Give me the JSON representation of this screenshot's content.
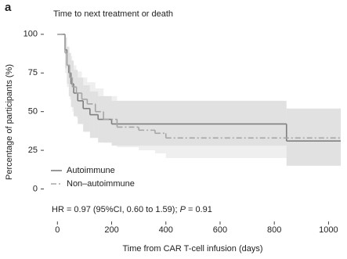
{
  "panel_label": "a",
  "chart_data": {
    "type": "step",
    "title": "Time to next treatment or death",
    "x_label": "Time from CAR T-cell infusion (days)",
    "y_label": "Percentage of participants (%)",
    "xlim": [
      -50,
      1045
    ],
    "xticks": [
      0,
      200,
      400,
      600,
      800,
      1000
    ],
    "ylim": [
      -21,
      107
    ],
    "yticks": [
      0,
      25,
      50,
      75,
      100
    ],
    "legend": "lower left",
    "annotation": {
      "prefix": "HR = 0.97 (95%CI, 0.60 to 1.59); ",
      "p_symbol": "P",
      "suffix": " = 0.91"
    },
    "series": [
      {
        "name": "Autoimmune",
        "color": "#7f7f7f",
        "band_color": "#c8c8c8",
        "dash": "solid",
        "x": [
          0,
          28,
          35,
          42,
          50,
          60,
          75,
          95,
          120,
          150,
          200,
          845
        ],
        "values": [
          100,
          90,
          80,
          75,
          68,
          62,
          57,
          52,
          48,
          45,
          42,
          31
        ],
        "lower": [
          100,
          78,
          68,
          60,
          53,
          47,
          42,
          37,
          33,
          30,
          28,
          15
        ],
        "upper": [
          100,
          98,
          92,
          88,
          83,
          77,
          72,
          67,
          63,
          60,
          57,
          52
        ]
      },
      {
        "name": "Non–autoimmune",
        "color": "#a6a6a6",
        "band_color": "#e2e2e2",
        "dash": "dashdot",
        "x": [
          0,
          28,
          35,
          45,
          55,
          70,
          90,
          110,
          140,
          170,
          220,
          300,
          360,
          400
        ],
        "values": [
          100,
          88,
          80,
          72,
          66,
          62,
          58,
          55,
          50,
          45,
          40,
          38,
          36,
          33
        ],
        "lower": [
          100,
          75,
          66,
          58,
          50,
          46,
          42,
          40,
          35,
          30,
          27,
          25,
          23,
          20
        ],
        "upper": [
          100,
          97,
          92,
          86,
          80,
          76,
          72,
          69,
          65,
          60,
          55,
          52,
          50,
          47
        ]
      }
    ]
  }
}
